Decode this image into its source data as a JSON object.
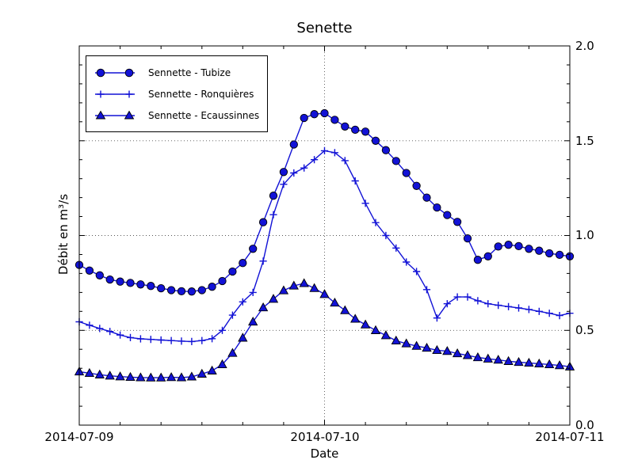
{
  "colors": {
    "line_blue": "#1212d6",
    "marker_edge": "#000000",
    "grid": "#555555",
    "text": "#000000",
    "background": "#ffffff"
  },
  "chart_data": {
    "type": "line",
    "title": "Senette",
    "xlabel": "Date",
    "ylabel": "Débit en m³/s",
    "xtick_labels": [
      "2014-07-09",
      "2014-07-10",
      "2014-07-11"
    ],
    "ytick_labels": [
      "0.0",
      "0.5",
      "1.0",
      "1.5",
      "2.0"
    ],
    "ylim": [
      0.0,
      2.0
    ],
    "xlim_hours_from_2014_07_09": [
      0,
      48
    ],
    "x_step_hours": 1,
    "grid": "dotted major gridlines, vertical at 2014-07-10, horizontal at 0.5/1.0/1.5",
    "legend_position": "upper left",
    "x_hours": [
      0,
      1,
      2,
      3,
      4,
      5,
      6,
      7,
      8,
      9,
      10,
      11,
      12,
      13,
      14,
      15,
      16,
      17,
      18,
      19,
      20,
      21,
      22,
      23,
      24,
      25,
      26,
      27,
      28,
      29,
      30,
      31,
      32,
      33,
      34,
      35,
      36,
      37,
      38,
      39,
      40,
      41,
      42,
      43,
      44,
      45,
      46,
      47,
      48
    ],
    "series": [
      {
        "name": "Sennette - Tubize",
        "marker": "circle",
        "values": [
          0.845,
          0.815,
          0.79,
          0.768,
          0.757,
          0.75,
          0.742,
          0.734,
          0.722,
          0.712,
          0.706,
          0.705,
          0.712,
          0.73,
          0.76,
          0.81,
          0.855,
          0.93,
          1.07,
          1.21,
          1.335,
          1.48,
          1.62,
          1.64,
          1.645,
          1.61,
          1.575,
          1.558,
          1.548,
          1.5,
          1.45,
          1.393,
          1.33,
          1.262,
          1.2,
          1.148,
          1.108,
          1.072,
          0.985,
          0.872,
          0.89,
          0.942,
          0.951,
          0.944,
          0.93,
          0.92,
          0.906,
          0.898,
          0.89
        ]
      },
      {
        "name": "Sennette - Ronquières",
        "marker": "plus",
        "values": [
          0.545,
          0.527,
          0.51,
          0.494,
          0.475,
          0.462,
          0.455,
          0.452,
          0.449,
          0.446,
          0.443,
          0.441,
          0.446,
          0.456,
          0.5,
          0.58,
          0.65,
          0.7,
          0.865,
          1.11,
          1.27,
          1.33,
          1.356,
          1.4,
          1.447,
          1.437,
          1.395,
          1.288,
          1.17,
          1.068,
          1.0,
          0.934,
          0.86,
          0.81,
          0.715,
          0.565,
          0.64,
          0.676,
          0.676,
          0.656,
          0.64,
          0.632,
          0.625,
          0.618,
          0.61,
          0.6,
          0.59,
          0.578,
          0.59
        ]
      },
      {
        "name": "Sennette - Ecaussinnes",
        "marker": "triangle",
        "values": [
          0.282,
          0.274,
          0.266,
          0.26,
          0.256,
          0.253,
          0.251,
          0.25,
          0.25,
          0.252,
          0.251,
          0.255,
          0.27,
          0.287,
          0.32,
          0.38,
          0.46,
          0.545,
          0.62,
          0.665,
          0.71,
          0.735,
          0.748,
          0.722,
          0.69,
          0.645,
          0.605,
          0.56,
          0.53,
          0.5,
          0.473,
          0.445,
          0.43,
          0.417,
          0.407,
          0.395,
          0.39,
          0.378,
          0.368,
          0.357,
          0.35,
          0.344,
          0.337,
          0.332,
          0.328,
          0.324,
          0.32,
          0.315,
          0.308
        ]
      }
    ]
  }
}
